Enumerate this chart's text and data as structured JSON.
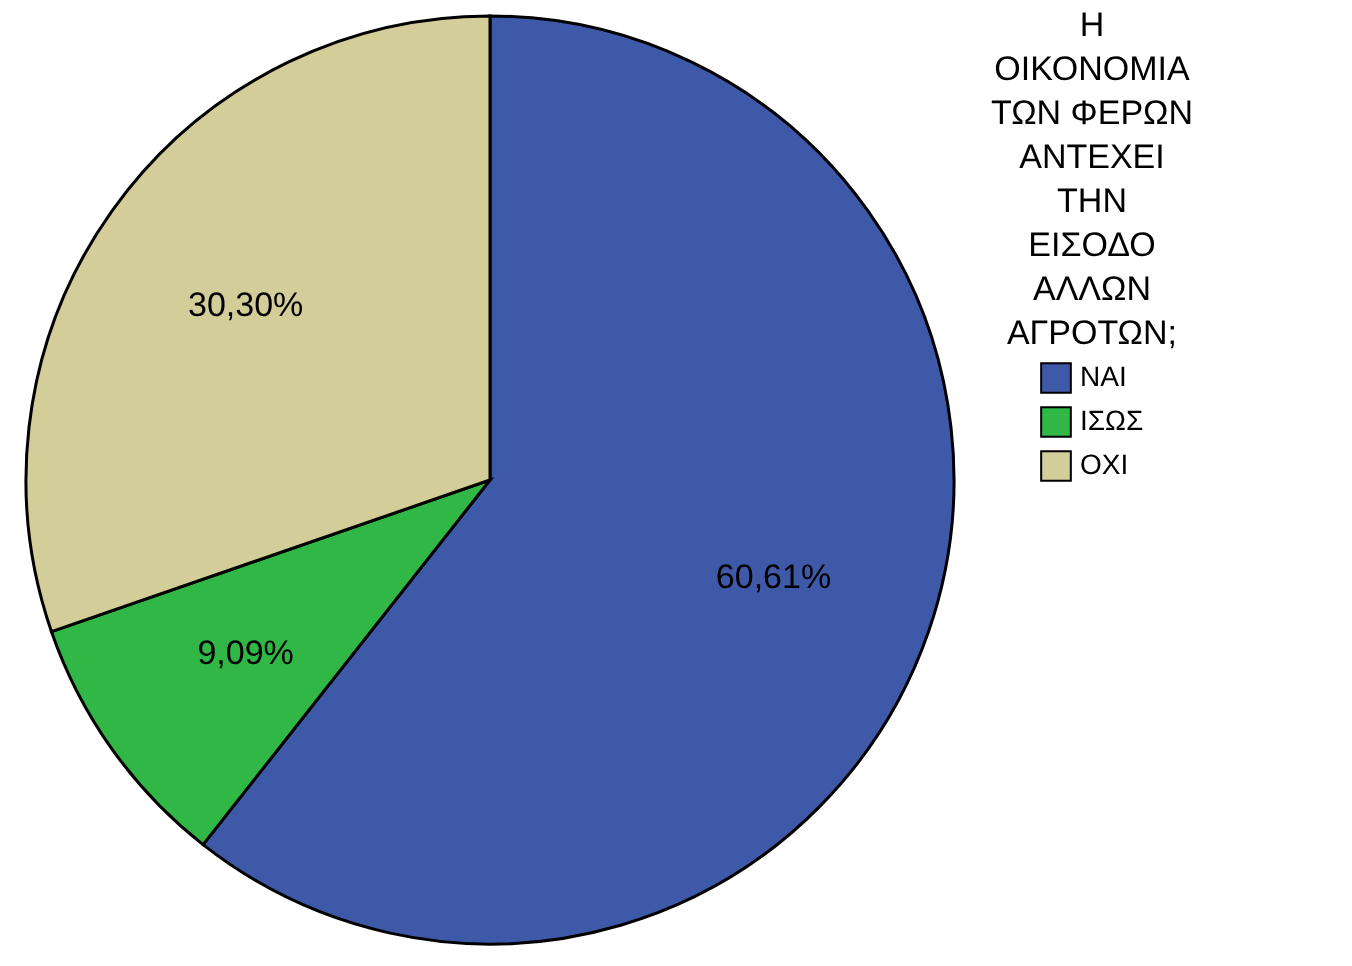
{
  "chart_data": {
    "type": "pie",
    "legend_title": "Η ΟΙΚΟΝΟΜΙΑ ΤΩΝ ΦΕΡΩΝ ΑΝΤΕΧΕΙ ΤΗΝ ΕΙΣΟΔΟ ΑΛΛΩΝ ΑΓΡΟΤΩΝ;",
    "categories": [
      "ΝΑΙ",
      "ΙΣΩΣ",
      "ΟΧΙ"
    ],
    "values": [
      60.61,
      9.09,
      30.3
    ],
    "colors": [
      "#3f59a9",
      "#30b746",
      "#d3cd99"
    ],
    "value_labels": [
      "60,61%",
      "9,09%",
      "30,30%"
    ],
    "legend": "right"
  }
}
